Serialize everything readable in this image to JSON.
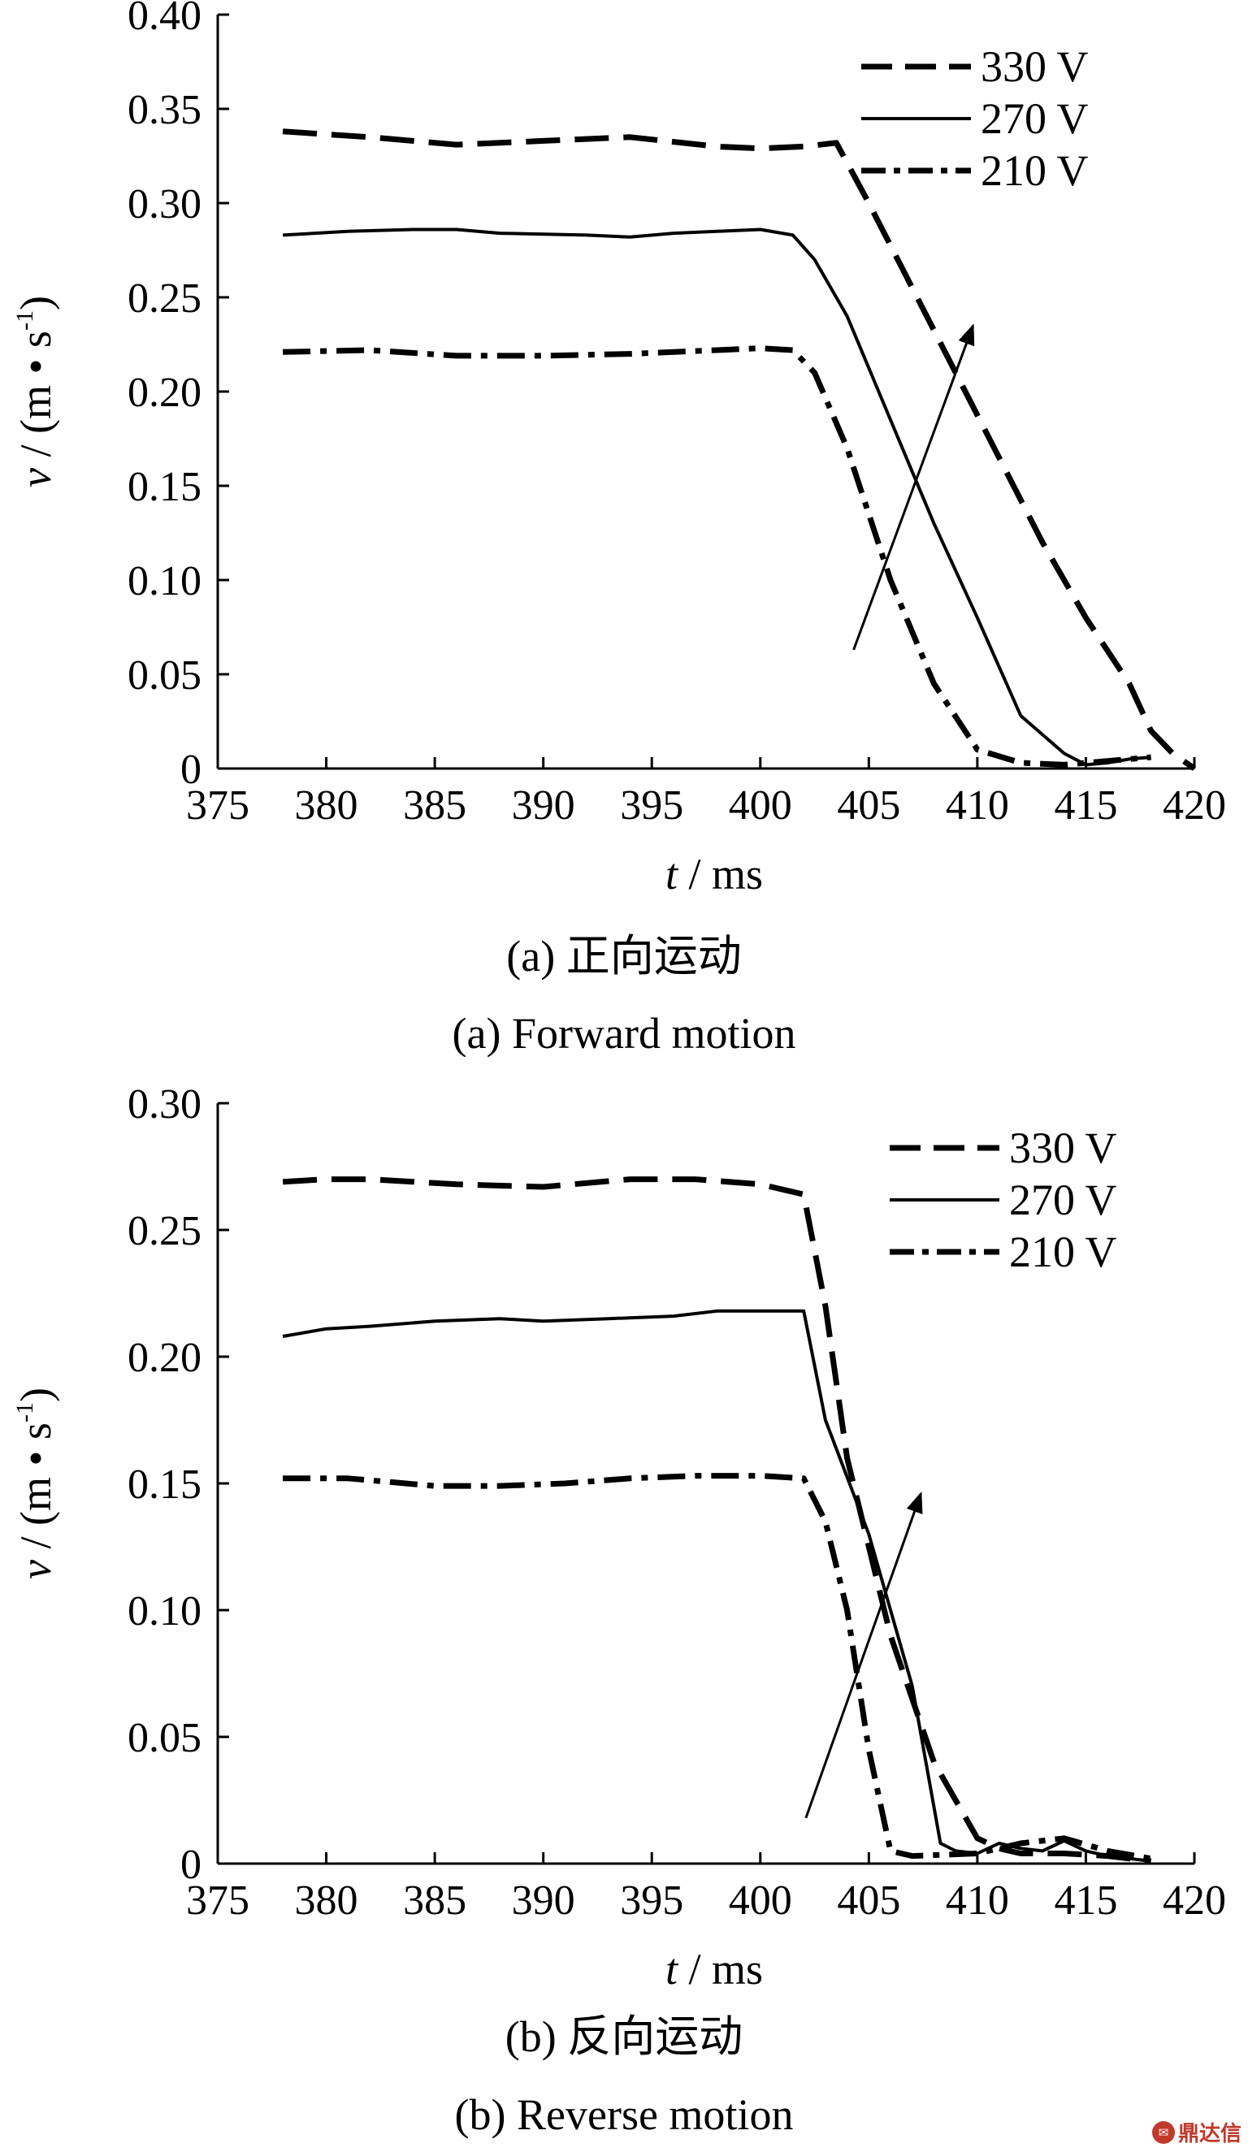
{
  "chart_data": [
    {
      "type": "line",
      "title": "(a) 正向运动",
      "subtitle": "(a) Forward motion",
      "xlabel_var": "t",
      "xlabel_unit": " / ms",
      "ylabel_var": "v",
      "ylabel_unit": " / (m • s",
      "ylabel_exp": "-1",
      "ylabel_close": ")",
      "xlim": [
        375,
        420
      ],
      "ylim": [
        0,
        0.4
      ],
      "xticks": [
        375,
        380,
        385,
        390,
        395,
        400,
        405,
        410,
        415,
        420
      ],
      "xtick_labels": [
        "375",
        "380",
        "385",
        "390",
        "395",
        "400",
        "405",
        "410",
        "415",
        "420"
      ],
      "yticks": [
        0,
        0.05,
        0.1,
        0.15,
        0.2,
        0.25,
        0.3,
        0.35,
        0.4
      ],
      "ytick_labels": [
        "0",
        "0.05",
        "0.10",
        "0.15",
        "0.20",
        "0.25",
        "0.30",
        "0.35",
        "0.40"
      ],
      "grid": false,
      "legend_position": "top-right",
      "arrow": {
        "from": [
          404.3,
          0.063
        ],
        "to": [
          409.8,
          0.235
        ]
      },
      "series": [
        {
          "name": "330 V",
          "style": "dashed",
          "x": [
            378,
            382,
            386,
            390,
            394,
            398,
            400,
            402,
            403.5,
            405,
            407,
            409,
            411,
            413,
            415,
            417,
            418,
            419,
            420
          ],
          "y": [
            0.338,
            0.335,
            0.331,
            0.333,
            0.335,
            0.33,
            0.329,
            0.33,
            0.332,
            0.3,
            0.255,
            0.21,
            0.165,
            0.12,
            0.08,
            0.045,
            0.02,
            0.008,
            0.0
          ]
        },
        {
          "name": "270 V",
          "style": "solid",
          "x": [
            378,
            381,
            384,
            386,
            388,
            392,
            394,
            396,
            398,
            400,
            401.5,
            402.5,
            404,
            406,
            408,
            410,
            412,
            413,
            414,
            415,
            416,
            417,
            418
          ],
          "y": [
            0.283,
            0.285,
            0.286,
            0.286,
            0.284,
            0.283,
            0.282,
            0.284,
            0.285,
            0.286,
            0.283,
            0.27,
            0.24,
            0.185,
            0.13,
            0.08,
            0.028,
            0.018,
            0.008,
            0.002,
            0.003,
            0.005,
            0.006
          ]
        },
        {
          "name": "210 V",
          "style": "dash-dot",
          "x": [
            378,
            382,
            386,
            390,
            394,
            398,
            400,
            401.5,
            402.5,
            404,
            406,
            408,
            410,
            412,
            414,
            416,
            418
          ],
          "y": [
            0.221,
            0.222,
            0.219,
            0.219,
            0.22,
            0.222,
            0.223,
            0.222,
            0.21,
            0.17,
            0.1,
            0.045,
            0.01,
            0.003,
            0.002,
            0.004,
            0.006
          ]
        }
      ]
    },
    {
      "type": "line",
      "title": "(b) 反向运动",
      "subtitle": "(b) Reverse motion",
      "xlabel_var": "t",
      "xlabel_unit": " / ms",
      "ylabel_var": "v",
      "ylabel_unit": " / (m • s",
      "ylabel_exp": "-1",
      "ylabel_close": ")",
      "xlim": [
        375,
        420
      ],
      "ylim": [
        0,
        0.3
      ],
      "xticks": [
        375,
        380,
        385,
        390,
        395,
        400,
        405,
        410,
        415,
        420
      ],
      "xtick_labels": [
        "375",
        "380",
        "385",
        "390",
        "395",
        "400",
        "405",
        "410",
        "415",
        "420"
      ],
      "yticks": [
        0,
        0.05,
        0.1,
        0.15,
        0.2,
        0.25,
        0.3
      ],
      "ytick_labels": [
        "0",
        "0.05",
        "0.10",
        "0.15",
        "0.20",
        "0.25",
        "0.30"
      ],
      "grid": false,
      "legend_position": "top-right",
      "arrow": {
        "from": [
          402.1,
          0.018
        ],
        "to": [
          407.4,
          0.146
        ]
      },
      "series": [
        {
          "name": "330 V",
          "style": "dashed",
          "x": [
            378,
            380,
            382,
            386,
            390,
            394,
            397,
            400,
            402,
            403,
            404,
            406,
            408,
            410,
            411,
            412,
            414,
            416,
            418
          ],
          "y": [
            0.269,
            0.27,
            0.27,
            0.268,
            0.267,
            0.27,
            0.27,
            0.268,
            0.264,
            0.22,
            0.16,
            0.09,
            0.04,
            0.01,
            0.006,
            0.004,
            0.004,
            0.003,
            0.001
          ]
        },
        {
          "name": "270 V",
          "style": "solid",
          "x": [
            378,
            380,
            382,
            385,
            388,
            390,
            393,
            396,
            398,
            400,
            402,
            403,
            405,
            407,
            408.3,
            409,
            410,
            411,
            412,
            413,
            414,
            415,
            416,
            417,
            418
          ],
          "y": [
            0.208,
            0.211,
            0.212,
            0.214,
            0.215,
            0.214,
            0.215,
            0.216,
            0.218,
            0.218,
            0.218,
            0.175,
            0.13,
            0.07,
            0.008,
            0.005,
            0.004,
            0.008,
            0.006,
            0.005,
            0.009,
            0.005,
            0.003,
            0.002,
            0.001
          ]
        },
        {
          "name": "210 V",
          "style": "dash-dot",
          "x": [
            378,
            381,
            385,
            388,
            391,
            394,
            397,
            400,
            402,
            403,
            404,
            405,
            406,
            407,
            410,
            412,
            414,
            416,
            418
          ],
          "y": [
            0.152,
            0.152,
            0.149,
            0.149,
            0.15,
            0.152,
            0.153,
            0.153,
            0.152,
            0.135,
            0.1,
            0.045,
            0.005,
            0.003,
            0.004,
            0.008,
            0.01,
            0.005,
            0.002
          ]
        }
      ]
    }
  ],
  "watermark": {
    "text": "鼎达信"
  }
}
